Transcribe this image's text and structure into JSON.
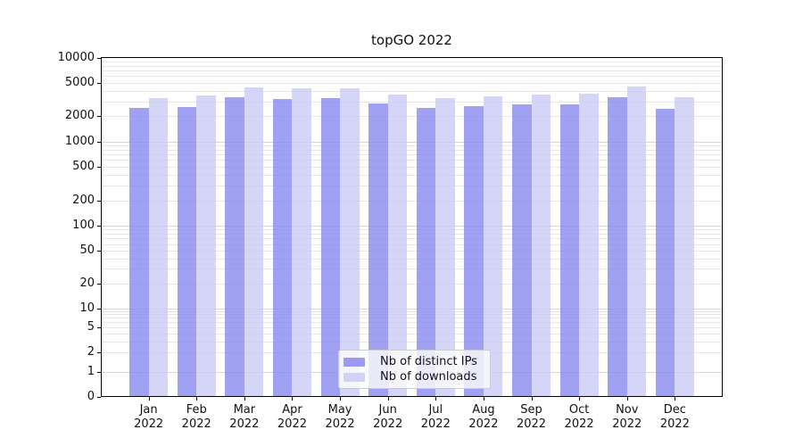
{
  "chart_data": {
    "type": "bar",
    "title": "topGO 2022",
    "scale": "symlog",
    "grid": true,
    "ylim": [
      0,
      10000
    ],
    "y_ticks": [
      0,
      1,
      2,
      5,
      10,
      20,
      50,
      100,
      200,
      500,
      1000,
      2000,
      5000,
      10000
    ],
    "categories": [
      "Jan",
      "Feb",
      "Mar",
      "Apr",
      "May",
      "Jun",
      "Jul",
      "Aug",
      "Sep",
      "Oct",
      "Nov",
      "Dec"
    ],
    "x_year_label": "2022",
    "legend_position": "bottom-center",
    "series": [
      {
        "name": "Nb of distinct IPs",
        "color": "#8a8af0",
        "values": [
          2460,
          2530,
          3280,
          3150,
          3200,
          2790,
          2430,
          2590,
          2680,
          2720,
          3280,
          2400
        ]
      },
      {
        "name": "Nb of downloads",
        "color": "#cbcbf5",
        "values": [
          3230,
          3420,
          4270,
          4160,
          4190,
          3560,
          3200,
          3390,
          3510,
          3650,
          4440,
          3280
        ]
      }
    ]
  }
}
